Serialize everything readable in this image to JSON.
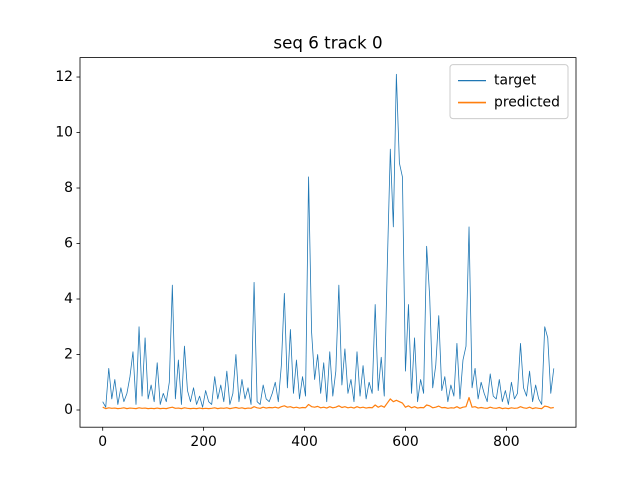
{
  "chart_data": {
    "type": "line",
    "title": "seq 6 track 0",
    "x": [
      0,
      6,
      12,
      18,
      24,
      30,
      36,
      42,
      48,
      54,
      60,
      66,
      72,
      78,
      84,
      90,
      96,
      102,
      108,
      114,
      120,
      126,
      132,
      138,
      144,
      150,
      156,
      162,
      168,
      174,
      180,
      186,
      192,
      198,
      204,
      210,
      216,
      222,
      228,
      234,
      240,
      246,
      252,
      258,
      264,
      270,
      276,
      282,
      288,
      294,
      300,
      306,
      312,
      318,
      324,
      330,
      336,
      342,
      348,
      354,
      360,
      366,
      372,
      378,
      384,
      390,
      396,
      402,
      408,
      414,
      420,
      426,
      432,
      438,
      444,
      450,
      456,
      462,
      468,
      474,
      480,
      486,
      492,
      498,
      504,
      510,
      516,
      522,
      528,
      534,
      540,
      546,
      552,
      558,
      564,
      570,
      576,
      582,
      588,
      594,
      600,
      606,
      612,
      618,
      624,
      630,
      636,
      642,
      648,
      654,
      660,
      666,
      672,
      678,
      684,
      690,
      696,
      702,
      708,
      714,
      720,
      726,
      732,
      738,
      744,
      750,
      756,
      762,
      768,
      774,
      780,
      786,
      792,
      798,
      804,
      810,
      816,
      822,
      828,
      834,
      840,
      846,
      852,
      858,
      864,
      870,
      876,
      882,
      888,
      894
    ],
    "series": [
      {
        "name": "target",
        "color": "#1f77b4",
        "width": 0.8,
        "values": [
          0.3,
          0.1,
          1.5,
          0.4,
          1.1,
          0.2,
          0.8,
          0.3,
          0.6,
          1.2,
          2.1,
          0.2,
          3.0,
          0.5,
          2.6,
          0.4,
          0.9,
          0.3,
          1.7,
          0.2,
          0.6,
          0.3,
          1.0,
          4.5,
          0.4,
          1.8,
          0.2,
          2.3,
          0.7,
          0.3,
          0.8,
          0.2,
          0.5,
          0.1,
          0.7,
          0.3,
          0.2,
          1.2,
          0.4,
          0.9,
          0.3,
          1.4,
          0.2,
          0.6,
          2.0,
          0.3,
          1.1,
          0.4,
          0.8,
          0.2,
          4.6,
          0.3,
          0.2,
          0.9,
          0.4,
          0.3,
          0.6,
          1.0,
          0.3,
          1.6,
          4.2,
          0.8,
          2.9,
          0.6,
          1.8,
          0.4,
          1.2,
          0.5,
          8.4,
          2.8,
          1.1,
          2.0,
          0.6,
          1.7,
          0.3,
          2.1,
          0.5,
          1.4,
          4.5,
          0.9,
          2.2,
          0.6,
          1.1,
          0.3,
          2.1,
          0.5,
          1.6,
          0.4,
          1.0,
          0.6,
          3.8,
          0.7,
          1.9,
          0.5,
          5.2,
          9.4,
          6.6,
          12.1,
          8.9,
          8.4,
          1.4,
          3.8,
          0.6,
          2.6,
          0.3,
          1.1,
          0.6,
          5.9,
          4.1,
          0.8,
          1.6,
          3.4,
          0.7,
          1.2,
          0.3,
          0.9,
          0.5,
          2.4,
          0.4,
          1.8,
          2.3,
          6.6,
          0.8,
          1.5,
          0.4,
          1.0,
          0.6,
          0.3,
          1.3,
          0.5,
          0.4,
          1.1,
          0.3,
          0.7,
          0.2,
          1.0,
          0.4,
          0.6,
          2.4,
          0.8,
          0.5,
          1.4,
          0.3,
          0.9,
          0.4,
          0.2,
          3.0,
          2.6,
          0.6,
          1.5
        ]
      },
      {
        "name": "predicted",
        "color": "#ff7f0e",
        "width": 1.2,
        "values": [
          0.1,
          0.05,
          0.08,
          0.06,
          0.07,
          0.05,
          0.06,
          0.08,
          0.05,
          0.07,
          0.06,
          0.05,
          0.08,
          0.06,
          0.07,
          0.05,
          0.06,
          0.05,
          0.07,
          0.05,
          0.06,
          0.05,
          0.08,
          0.1,
          0.06,
          0.07,
          0.05,
          0.08,
          0.06,
          0.05,
          0.06,
          0.05,
          0.07,
          0.05,
          0.06,
          0.05,
          0.06,
          0.08,
          0.05,
          0.07,
          0.06,
          0.08,
          0.05,
          0.07,
          0.09,
          0.06,
          0.08,
          0.05,
          0.07,
          0.06,
          0.12,
          0.08,
          0.06,
          0.1,
          0.07,
          0.09,
          0.08,
          0.1,
          0.07,
          0.12,
          0.15,
          0.1,
          0.12,
          0.08,
          0.1,
          0.07,
          0.09,
          0.08,
          0.2,
          0.12,
          0.1,
          0.13,
          0.08,
          0.1,
          0.07,
          0.12,
          0.08,
          0.1,
          0.15,
          0.09,
          0.12,
          0.08,
          0.1,
          0.07,
          0.12,
          0.08,
          0.1,
          0.07,
          0.09,
          0.08,
          0.18,
          0.1,
          0.15,
          0.1,
          0.25,
          0.4,
          0.3,
          0.35,
          0.3,
          0.25,
          0.1,
          0.15,
          0.08,
          0.12,
          0.07,
          0.09,
          0.08,
          0.18,
          0.15,
          0.08,
          0.1,
          0.14,
          0.08,
          0.09,
          0.06,
          0.08,
          0.07,
          0.12,
          0.06,
          0.1,
          0.12,
          0.45,
          0.1,
          0.12,
          0.07,
          0.09,
          0.07,
          0.06,
          0.1,
          0.07,
          0.06,
          0.09,
          0.05,
          0.07,
          0.05,
          0.08,
          0.06,
          0.07,
          0.12,
          0.08,
          0.06,
          0.1,
          0.05,
          0.08,
          0.06,
          0.05,
          0.14,
          0.12,
          0.07,
          0.09
        ]
      }
    ],
    "xlim": [
      -45,
      938
    ],
    "ylim": [
      -0.62,
      12.7
    ],
    "xticks": [
      0,
      200,
      400,
      600,
      800
    ],
    "yticks": [
      0,
      2,
      4,
      6,
      8,
      10,
      12
    ],
    "legend": "upper right",
    "grid": false
  }
}
